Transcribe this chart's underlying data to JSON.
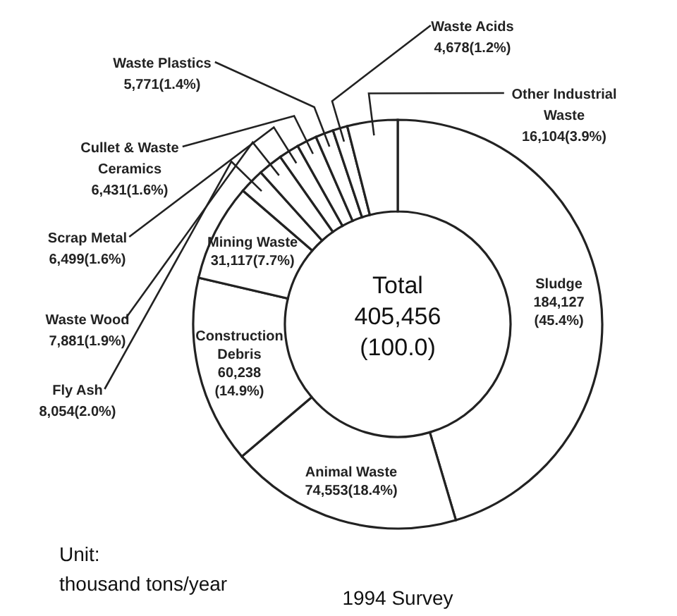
{
  "chart_data": {
    "type": "donut",
    "title": "1994 Survey",
    "categories": [
      "Sludge",
      "Animal Waste",
      "Construction Debris",
      "Mining Waste",
      "Fly Ash",
      "Waste Wood",
      "Scrap Metal",
      "Cullet & Waste Ceramics",
      "Waste Plastics",
      "Waste Acids",
      "Other Industrial Waste"
    ],
    "values": [
      184127,
      74553,
      60238,
      31117,
      8054,
      7881,
      6499,
      6431,
      5771,
      4678,
      16104
    ],
    "value_labels": [
      "184,127(45.4%)",
      "74,553(18.4%)",
      "60,238(14.9%)",
      "31,117(7.7%)",
      "8,054(2.0%)",
      "7,881(1.9%)",
      "6,499(1.6%)",
      "6,431(1.6%)",
      "5,771(1.4%)",
      "4,678(1.2%)",
      "16,104(3.9%)"
    ],
    "colors": [
      "#ffffff",
      "#ffffff",
      "#ffffff",
      "#ffffff",
      "#ffffff",
      "#ffffff",
      "#ffffff",
      "#ffffff",
      "#ffffff",
      "#ffffff",
      "#ffffff"
    ],
    "annotations": [
      "Total 405,456 (100.0)",
      "Unit: thousand tons/year"
    ]
  }
}
